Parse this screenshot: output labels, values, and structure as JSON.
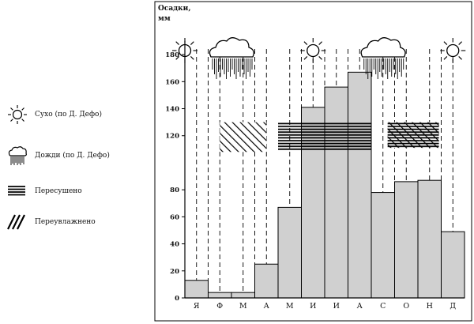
{
  "legend": {
    "dry": "Сухо (по Д. Дефо)",
    "rain": "Дожди (по Д. Дефо)",
    "overdried": "Пересушено",
    "overwet": "Переувлажнено"
  },
  "chart_data": {
    "type": "bar",
    "title": "",
    "ylabel_lines": [
      "Осадки,",
      "мм"
    ],
    "categories": [
      "Я",
      "Ф",
      "М",
      "А",
      "М",
      "И",
      "И",
      "А",
      "С",
      "О",
      "Н",
      "Д"
    ],
    "values": [
      13,
      4,
      4,
      25,
      67,
      141,
      156,
      167,
      78,
      86,
      87,
      49
    ],
    "ylim": [
      0,
      190
    ],
    "yticks": [
      0,
      20,
      40,
      60,
      80,
      120,
      140,
      160,
      180
    ],
    "bar_color": "#d0d0d0",
    "weather_symbols": [
      {
        "type": "dry",
        "position": 0
      },
      {
        "type": "rain",
        "position": 2
      },
      {
        "type": "dry",
        "position": 5.5
      },
      {
        "type": "rain",
        "position": 8.5
      },
      {
        "type": "dry",
        "position": 11.5
      }
    ],
    "period_dividers": [
      1,
      3,
      5,
      6,
      7,
      9,
      11
    ],
    "bands": [
      {
        "type": "overwet",
        "from": 1.5,
        "to": 3.5,
        "y_from": 108,
        "y_to": 130
      },
      {
        "type": "overdried",
        "from": 4,
        "to": 8,
        "y_from": 109,
        "y_to": 130
      },
      {
        "type": "overwet",
        "from": 8.7,
        "to": 10.9,
        "y_from": 111,
        "y_to": 130
      },
      {
        "type": "overdried",
        "from": 8.7,
        "to": 10.9,
        "y_from": 111,
        "y_to": 130
      }
    ]
  }
}
